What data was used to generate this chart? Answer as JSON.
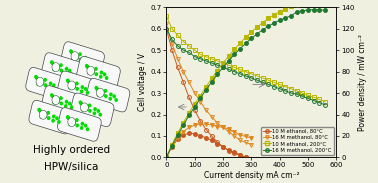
{
  "xlabel": "Current density mA cm⁻²",
  "ylabel_left": "Cell voltage / V",
  "ylabel_right": "Power density / mW cm⁻²",
  "xlim": [
    0,
    600
  ],
  "ylim_left": [
    0,
    0.7
  ],
  "ylim_right": [
    0,
    140
  ],
  "left_label_line1": "Highly ordered",
  "left_label_line2": "HPW/silica",
  "legend_entries": [
    "10 M ethanol, 80°C",
    "16 M methanol, 80°C",
    "10 M ethanol, 200°C",
    "16 M methanol, 200°C"
  ],
  "polarization_curves": {
    "10M_eth_80": {
      "cd": [
        0,
        20,
        40,
        60,
        80,
        100,
        120,
        140,
        160,
        180,
        200,
        220,
        240,
        260,
        280
      ],
      "v": [
        0.6,
        0.5,
        0.42,
        0.35,
        0.28,
        0.22,
        0.17,
        0.13,
        0.1,
        0.07,
        0.05,
        0.03,
        0.02,
        0.01,
        0.0
      ],
      "color": "#c85820",
      "marker": "o"
    },
    "16M_meth_80": {
      "cd": [
        0,
        20,
        40,
        60,
        80,
        100,
        120,
        140,
        160,
        180,
        200,
        220,
        240,
        260,
        280,
        300
      ],
      "v": [
        0.62,
        0.53,
        0.46,
        0.4,
        0.35,
        0.3,
        0.26,
        0.22,
        0.19,
        0.16,
        0.14,
        0.12,
        0.1,
        0.08,
        0.07,
        0.06
      ],
      "color": "#e08820",
      "marker": "v"
    },
    "10M_eth_200": {
      "cd": [
        0,
        20,
        40,
        60,
        80,
        100,
        120,
        140,
        160,
        180,
        200,
        220,
        240,
        260,
        280,
        300,
        320,
        340,
        360,
        380,
        400,
        420,
        440,
        460,
        480,
        500,
        520,
        540,
        560
      ],
      "v": [
        0.66,
        0.6,
        0.57,
        0.54,
        0.52,
        0.5,
        0.48,
        0.47,
        0.46,
        0.45,
        0.44,
        0.43,
        0.42,
        0.41,
        0.4,
        0.39,
        0.38,
        0.37,
        0.36,
        0.35,
        0.34,
        0.33,
        0.32,
        0.31,
        0.3,
        0.29,
        0.28,
        0.27,
        0.26
      ],
      "color": "#b8b800",
      "marker": "s"
    },
    "16M_meth_200": {
      "cd": [
        0,
        20,
        40,
        60,
        80,
        100,
        120,
        140,
        160,
        180,
        200,
        220,
        240,
        260,
        280,
        300,
        320,
        340,
        360,
        380,
        400,
        420,
        440,
        460,
        480,
        500,
        520,
        540,
        560
      ],
      "v": [
        0.6,
        0.55,
        0.52,
        0.5,
        0.49,
        0.47,
        0.46,
        0.45,
        0.44,
        0.43,
        0.42,
        0.41,
        0.4,
        0.39,
        0.38,
        0.37,
        0.36,
        0.35,
        0.34,
        0.33,
        0.32,
        0.31,
        0.3,
        0.295,
        0.285,
        0.275,
        0.265,
        0.255,
        0.245
      ],
      "color": "#207830",
      "marker": "o"
    }
  },
  "power_curves": {
    "10M_eth_80": {
      "cd": [
        0,
        20,
        40,
        60,
        80,
        100,
        120,
        140,
        160,
        180,
        200,
        220,
        240,
        260,
        280
      ],
      "pd": [
        0,
        10,
        16.8,
        21,
        22.4,
        22,
        20.4,
        18.2,
        16,
        12.6,
        10,
        6.6,
        4.8,
        2.6,
        0.0
      ],
      "color": "#c85820",
      "marker": "o"
    },
    "16M_meth_80": {
      "cd": [
        0,
        20,
        40,
        60,
        80,
        100,
        120,
        140,
        160,
        180,
        200,
        220,
        240,
        260,
        280,
        300
      ],
      "pd": [
        0,
        10.6,
        18.4,
        24,
        28,
        30,
        31.2,
        30.8,
        30.4,
        28.8,
        28,
        26.4,
        24,
        20.8,
        19.6,
        18
      ],
      "color": "#e08820",
      "marker": "v"
    },
    "10M_eth_200": {
      "cd": [
        0,
        20,
        40,
        60,
        80,
        100,
        120,
        140,
        160,
        180,
        200,
        220,
        240,
        260,
        280,
        300,
        320,
        340,
        360,
        380,
        400,
        420,
        440,
        460,
        480,
        500,
        520,
        540,
        560
      ],
      "pd": [
        0,
        12,
        22.8,
        32.4,
        41.6,
        50,
        57.6,
        65.8,
        73.6,
        81,
        88,
        94.6,
        100.8,
        106.6,
        112,
        117,
        121.6,
        125.8,
        129.6,
        133,
        136,
        138.6,
        140.8,
        142.6,
        144,
        145,
        145.6,
        145.8,
        145.6
      ],
      "color": "#b8b800",
      "marker": "s"
    },
    "16M_meth_200": {
      "cd": [
        0,
        20,
        40,
        60,
        80,
        100,
        120,
        140,
        160,
        180,
        200,
        220,
        240,
        260,
        280,
        300,
        320,
        340,
        360,
        380,
        400,
        420,
        440,
        460,
        480,
        500,
        520,
        540,
        560
      ],
      "pd": [
        0,
        11,
        20.8,
        30,
        39.2,
        47,
        55.2,
        63,
        70.4,
        77.4,
        84,
        90.2,
        96,
        101.4,
        106.4,
        111,
        115.2,
        119,
        122.4,
        125.4,
        128,
        130.2,
        132,
        135.8,
        136.8,
        137.5,
        137.8,
        137.7,
        137.2
      ],
      "color": "#207830",
      "marker": "o"
    }
  },
  "background_color": "#f0f0e0"
}
